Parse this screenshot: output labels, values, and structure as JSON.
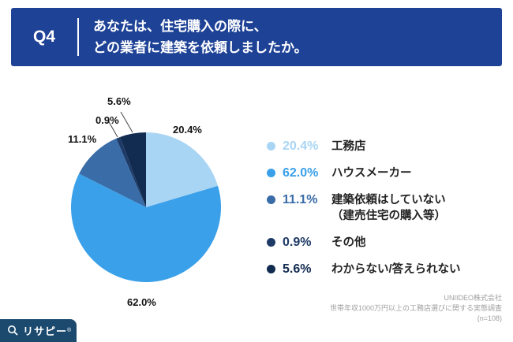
{
  "header": {
    "question_no": "Q4",
    "title_line1": "あなたは、住宅購入の際に、",
    "title_line2": "どの業者に建築を依頼しましたか。",
    "bg_color": "#1E4296"
  },
  "chart_data": {
    "type": "pie",
    "title": "あなたは、住宅購入の際に、どの業者に建築を依頼しましたか。",
    "categories": [
      "工務店",
      "ハウスメーカー",
      "建築依頼はしていない（建売住宅の購入等）",
      "その他",
      "わからない/答えられない"
    ],
    "values": [
      20.4,
      62.0,
      11.1,
      0.9,
      5.6
    ],
    "unit": "%",
    "colors": [
      "#A9D5F5",
      "#3AA0E9",
      "#3A6CA8",
      "#1E3A66",
      "#122B50"
    ],
    "start_angle": "top",
    "direction": "clockwise",
    "legend_position": "right",
    "slice_labels": [
      "20.4%",
      "62.0%",
      "11.1%",
      "0.9%",
      "5.6%"
    ]
  },
  "legend": {
    "items": [
      {
        "percent": "20.4%",
        "label": "工務店",
        "color": "#A9D5F5"
      },
      {
        "percent": "62.0%",
        "label": "ハウスメーカー",
        "color": "#3AA0E9"
      },
      {
        "percent": "11.1%",
        "label": "建築依頼はしていない",
        "label2": "（建売住宅の購入等）",
        "color": "#3A6CA8"
      },
      {
        "percent": "0.9%",
        "label": "その他",
        "color": "#1E3A66"
      },
      {
        "percent": "5.6%",
        "label": "わからない/答えられない",
        "color": "#122B50"
      }
    ]
  },
  "footer": {
    "company": "UNIIDEO株式会社",
    "survey": "世帯年収1000万円以上の工務店選びに関する実態調査",
    "sample": "(n=108)",
    "logo_text": "リサピー",
    "logo_reg": "®"
  }
}
